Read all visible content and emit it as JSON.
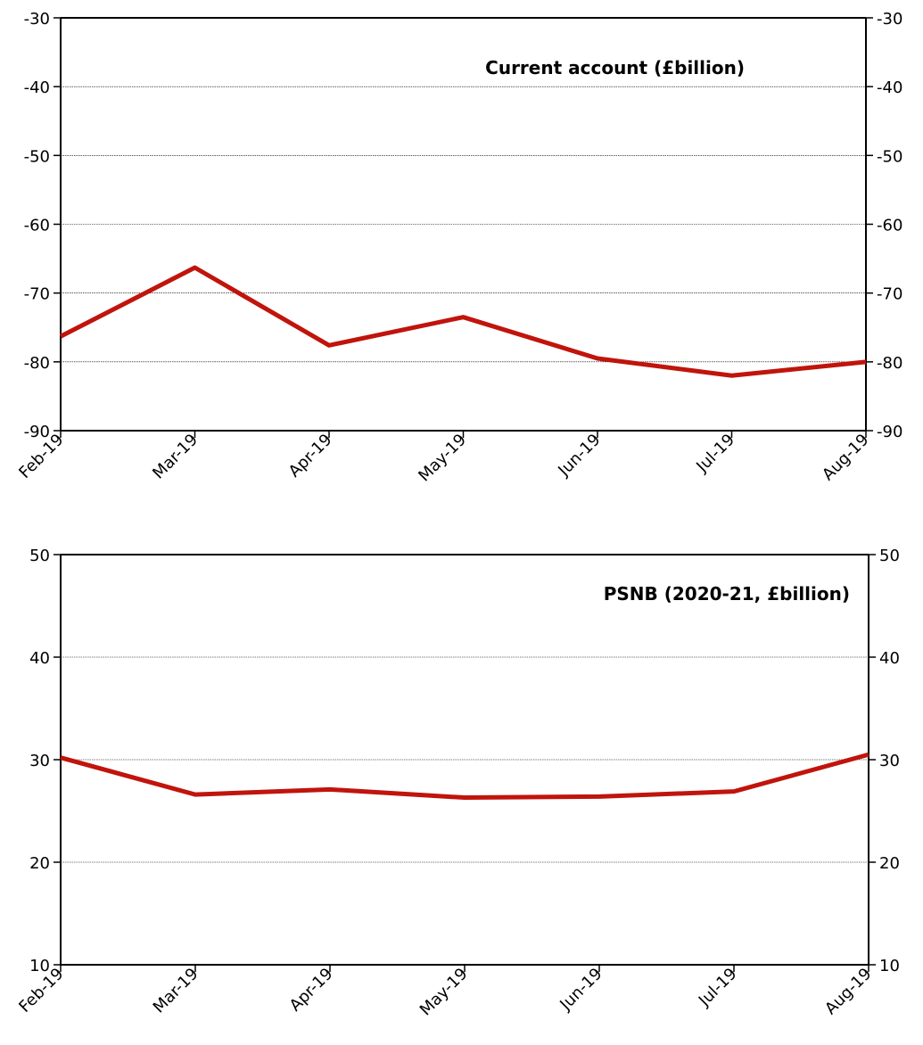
{
  "chart_data": [
    {
      "type": "line",
      "title": "Current account (£billion)",
      "categories": [
        "Feb-19",
        "Mar-19",
        "Apr-19",
        "May-19",
        "Jun-19",
        "Jul-19",
        "Aug-19"
      ],
      "series": [
        {
          "values": [
            -76.3,
            -66.3,
            -77.6,
            -73.5,
            -79.5,
            -82.0,
            -80.0
          ]
        }
      ],
      "ylim": [
        -90,
        -30
      ],
      "yticks": [
        -30,
        -40,
        -50,
        -60,
        -70,
        -80,
        -90
      ],
      "grid": true,
      "secondary_axis": true,
      "line_color": "#c0140c"
    },
    {
      "type": "line",
      "title": "PSNB (2020-21, £billion)",
      "categories": [
        "Feb-19",
        "Mar-19",
        "Apr-19",
        "May-19",
        "Jun-19",
        "Jul-19",
        "Aug-19"
      ],
      "series": [
        {
          "values": [
            30.2,
            26.6,
            27.1,
            26.3,
            26.4,
            26.9,
            30.5
          ]
        }
      ],
      "ylim": [
        10,
        50
      ],
      "yticks": [
        50,
        40,
        30,
        20,
        10
      ],
      "grid": true,
      "secondary_axis": true,
      "line_color": "#c0140c"
    }
  ]
}
